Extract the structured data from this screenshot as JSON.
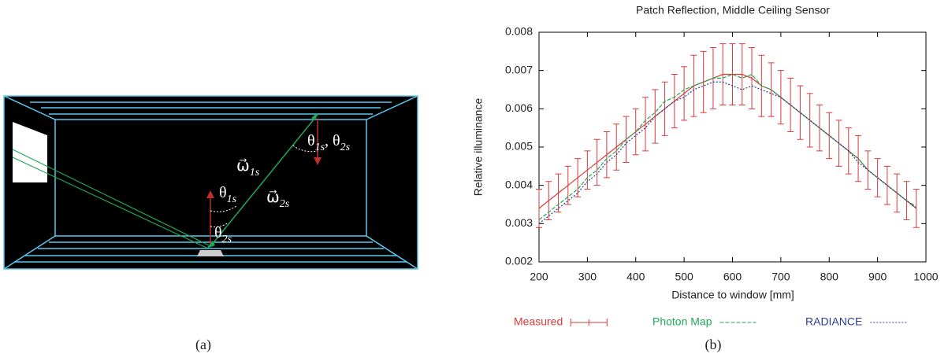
{
  "diagram": {
    "labels": [
      {
        "segments": [
          [
            "ω⃗",
            "1s"
          ]
        ]
      },
      {
        "segments": [
          [
            "ω⃗",
            "2s"
          ]
        ]
      },
      {
        "segments": [
          [
            "θ",
            "1s"
          ]
        ]
      },
      {
        "segments": [
          [
            "θ",
            "2s"
          ]
        ]
      },
      {
        "segments": [
          [
            "θ",
            "1s"
          ],
          [
            ", θ",
            "2s"
          ]
        ]
      }
    ],
    "caption": "(a)"
  },
  "chart_data": {
    "type": "line",
    "title": "Patch Reflection, Middle Ceiling Sensor",
    "xlabel": "Distance to window [mm]",
    "ylabel": "Relative illuminance",
    "caption": "(b)",
    "xlim": [
      200,
      1000
    ],
    "xticks": [
      200,
      300,
      400,
      500,
      600,
      700,
      800,
      900,
      1000
    ],
    "ylim": [
      0.002,
      0.008
    ],
    "yticks": [
      0.002,
      0.003,
      0.004,
      0.005,
      0.006,
      0.007,
      0.008
    ],
    "grid": false,
    "legend": "bottom",
    "x": [
      200,
      220,
      240,
      260,
      280,
      300,
      320,
      340,
      360,
      380,
      400,
      420,
      440,
      460,
      480,
      500,
      520,
      540,
      560,
      580,
      600,
      620,
      640,
      660,
      680,
      700,
      720,
      740,
      760,
      780,
      800,
      820,
      840,
      860,
      880,
      900,
      920,
      940,
      960,
      980
    ],
    "series": [
      {
        "name": "Measured",
        "color": "#d93a3a",
        "dash": "none",
        "values": [
          0.0034,
          0.0036,
          0.0038,
          0.004,
          0.0042,
          0.0044,
          0.0046,
          0.0048,
          0.005,
          0.0052,
          0.0054,
          0.0056,
          0.0058,
          0.006,
          0.0062,
          0.0064,
          0.0066,
          0.0067,
          0.0068,
          0.0069,
          0.0069,
          0.0069,
          0.0068,
          0.0066,
          0.0065,
          0.0063,
          0.0061,
          0.0059,
          0.0057,
          0.0055,
          0.0053,
          0.0051,
          0.0049,
          0.0047,
          0.0044,
          0.0042,
          0.004,
          0.0038,
          0.0036,
          0.0034
        ],
        "errors": [
          0.0005,
          0.0005,
          0.0005,
          0.0005,
          0.0005,
          0.0005,
          0.0006,
          0.0006,
          0.0006,
          0.0006,
          0.0006,
          0.0007,
          0.0007,
          0.0007,
          0.0007,
          0.0007,
          0.0008,
          0.0008,
          0.0008,
          0.0008,
          0.0008,
          0.0008,
          0.0008,
          0.0008,
          0.0007,
          0.0007,
          0.0007,
          0.0007,
          0.0007,
          0.0006,
          0.0006,
          0.0006,
          0.0006,
          0.0006,
          0.0005,
          0.0005,
          0.0005,
          0.0005,
          0.0005,
          0.0005
        ]
      },
      {
        "name": "Photon Map",
        "color": "#1fa855",
        "dash": "5 2",
        "values": [
          0.0031,
          0.0033,
          0.0035,
          0.0037,
          0.0039,
          0.0042,
          0.0044,
          0.0047,
          0.0049,
          0.0052,
          0.0054,
          0.0057,
          0.0059,
          0.0062,
          0.0063,
          0.0065,
          0.0066,
          0.0067,
          0.0068,
          0.0068,
          0.0069,
          0.0068,
          0.0069,
          0.0066,
          0.0065,
          0.0063,
          0.0061,
          0.0059,
          0.0057,
          0.0055,
          0.0053,
          0.0051,
          0.0049,
          0.0047,
          0.0044,
          0.0042,
          0.004,
          0.0038,
          0.0036,
          0.00345
        ]
      },
      {
        "name": "RADIANCE",
        "color": "#2a3f8f",
        "dash": "2 2",
        "values": [
          0.003,
          0.0032,
          0.0034,
          0.0036,
          0.0038,
          0.0041,
          0.0043,
          0.0046,
          0.0048,
          0.0051,
          0.0053,
          0.0055,
          0.0058,
          0.006,
          0.0062,
          0.0063,
          0.0065,
          0.0066,
          0.0067,
          0.0067,
          0.0066,
          0.0065,
          0.0066,
          0.0065,
          0.0064,
          0.0063,
          0.0061,
          0.0059,
          0.0057,
          0.0055,
          0.0053,
          0.0051,
          0.0049,
          0.0046,
          0.0044,
          0.0042,
          0.004,
          0.0038,
          0.0036,
          0.0034
        ]
      }
    ]
  }
}
